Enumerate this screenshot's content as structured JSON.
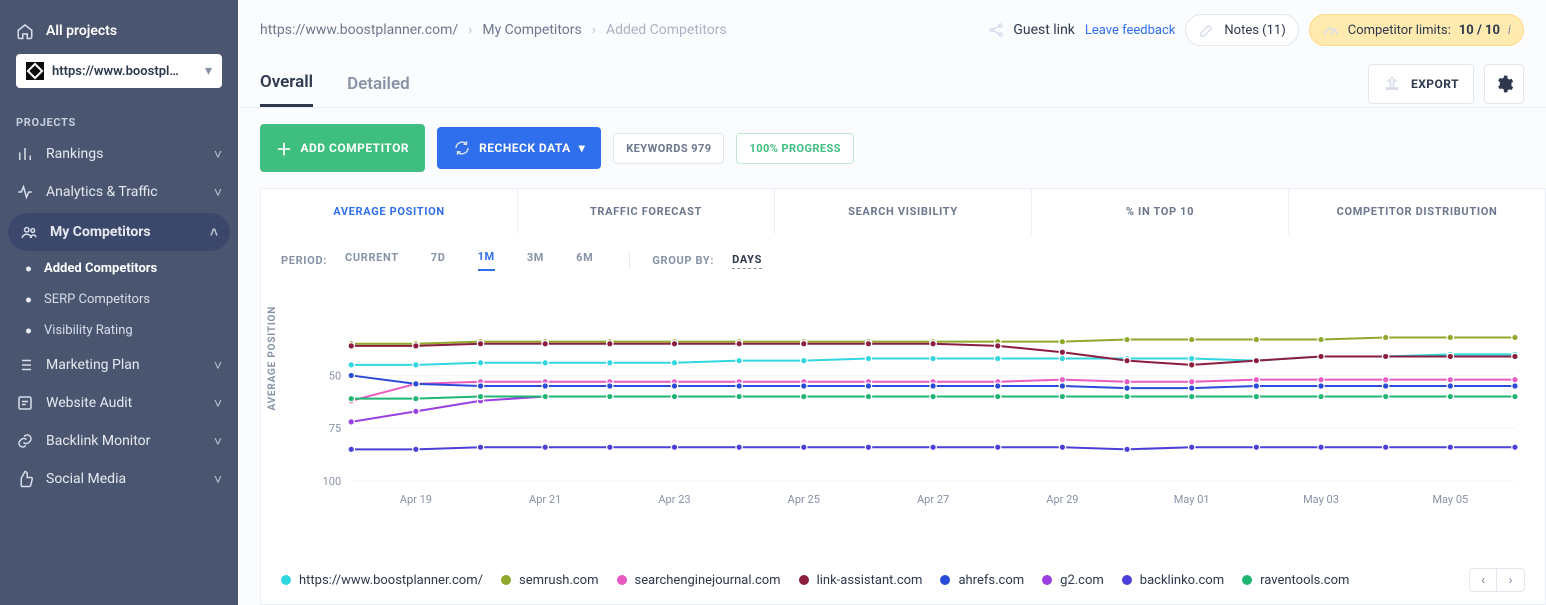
{
  "sidebar": {
    "all_projects": "All projects",
    "project_url": "https://www.boostpl…",
    "section": "PROJECTS",
    "items": [
      {
        "icon": "bars",
        "label": "Rankings"
      },
      {
        "icon": "pulse",
        "label": "Analytics & Traffic"
      },
      {
        "icon": "people",
        "label": "My Competitors",
        "active": true,
        "children": [
          {
            "label": "Added Competitors",
            "active": true
          },
          {
            "label": "SERP Competitors"
          },
          {
            "label": "Visibility Rating"
          }
        ]
      },
      {
        "icon": "list",
        "label": "Marketing Plan"
      },
      {
        "icon": "audit",
        "label": "Website Audit"
      },
      {
        "icon": "link",
        "label": "Backlink Monitor"
      },
      {
        "icon": "thumb",
        "label": "Social Media"
      }
    ]
  },
  "header": {
    "crumbs": [
      "https://www.boostplanner.com/",
      "My Competitors",
      "Added Competitors"
    ],
    "guest_link": "Guest link",
    "leave_feedback": "Leave feedback",
    "notes_label": "Notes (11)",
    "limits_label": "Competitor limits:",
    "limits_value": "10 / 10"
  },
  "tabs": {
    "items": [
      "Overall",
      "Detailed"
    ],
    "active": 0,
    "export": "EXPORT"
  },
  "toolbar": {
    "add": "ADD COMPETITOR",
    "recheck": "RECHECK DATA",
    "keywords": "KEYWORDS 979",
    "progress": "100% PROGRESS"
  },
  "metric_tabs": {
    "items": [
      "AVERAGE POSITION",
      "TRAFFIC FORECAST",
      "SEARCH VISIBILITY",
      "% IN TOP 10",
      "COMPETITOR DISTRIBUTION"
    ],
    "active": 0
  },
  "controls": {
    "period_label": "PERIOD:",
    "period_options": [
      "CURRENT",
      "7D",
      "1M",
      "3M",
      "6M"
    ],
    "period_active": 2,
    "group_label": "GROUP BY:",
    "group_value": "DAYS"
  },
  "chart": {
    "type": "line",
    "ylabel": "AVERAGE POSITION",
    "ylim": [
      10,
      100
    ],
    "yInverted": true,
    "yticks": [
      50,
      75,
      100
    ],
    "x_labels": [
      "Apr 19",
      "Apr 21",
      "Apr 23",
      "Apr 25",
      "Apr 27",
      "Apr 29",
      "May 01",
      "May 03",
      "May 05"
    ],
    "x_count": 19,
    "grid_color": "#f2f4f8",
    "background": "#ffffff",
    "series": [
      {
        "name": "https://www.boostplanner.com/",
        "color": "#30d6e0",
        "values": [
          45,
          45,
          44,
          44,
          44,
          44,
          43,
          43,
          42,
          42,
          42,
          42,
          42,
          42,
          43,
          41,
          41,
          40,
          40
        ]
      },
      {
        "name": "semrush.com",
        "color": "#8fa92b",
        "values": [
          35,
          35,
          34,
          34,
          34,
          34,
          34,
          34,
          34,
          34,
          34,
          34,
          33,
          33,
          33,
          33,
          32,
          32,
          32
        ]
      },
      {
        "name": "searchenginejournal.com",
        "color": "#e85bc1",
        "values": [
          62,
          54,
          53,
          53,
          53,
          53,
          53,
          53,
          53,
          53,
          53,
          52,
          53,
          53,
          52,
          52,
          52,
          52,
          52
        ]
      },
      {
        "name": "link-assistant.com",
        "color": "#8b1e3f",
        "values": [
          36,
          36,
          35,
          35,
          35,
          35,
          35,
          35,
          35,
          35,
          36,
          39,
          43,
          45,
          43,
          41,
          41,
          41,
          41
        ]
      },
      {
        "name": "ahrefs.com",
        "color": "#2a4bd7",
        "values": [
          50,
          54,
          55,
          55,
          55,
          55,
          55,
          55,
          55,
          55,
          55,
          55,
          56,
          56,
          55,
          55,
          55,
          55,
          55
        ]
      },
      {
        "name": "g2.com",
        "color": "#9a3fe0",
        "values": [
          72,
          67,
          62,
          60,
          60,
          60,
          60,
          60,
          60,
          60,
          60,
          60,
          60,
          60,
          60,
          60,
          60,
          60,
          60
        ]
      },
      {
        "name": "backlinko.com",
        "color": "#4b3fd7",
        "values": [
          85,
          85,
          84,
          84,
          84,
          84,
          84,
          84,
          84,
          84,
          84,
          84,
          85,
          84,
          84,
          84,
          84,
          84,
          84
        ]
      },
      {
        "name": "raventools.com",
        "color": "#1fb573",
        "values": [
          61,
          61,
          60,
          60,
          60,
          60,
          60,
          60,
          60,
          60,
          60,
          60,
          60,
          60,
          60,
          60,
          60,
          60,
          60
        ]
      }
    ]
  }
}
